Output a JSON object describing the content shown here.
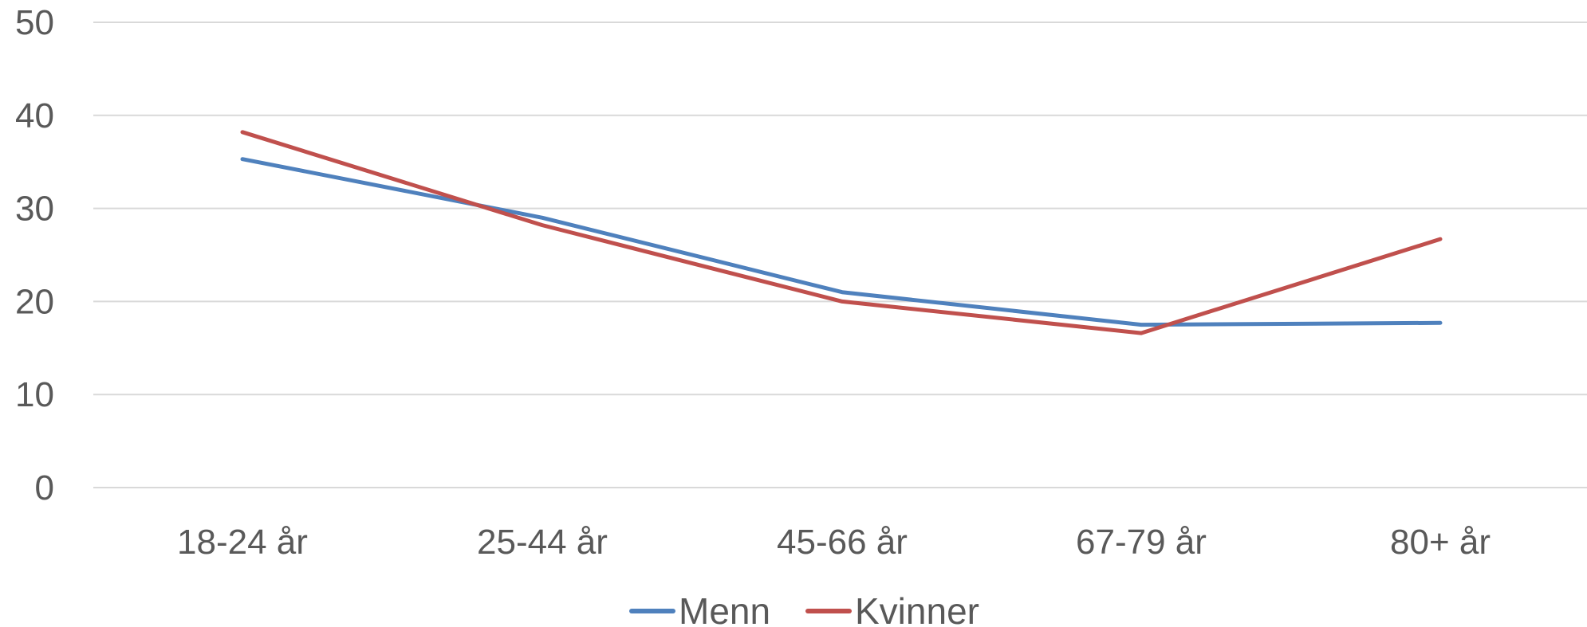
{
  "chart_data": {
    "type": "line",
    "categories": [
      "18-24 år",
      "25-44 år",
      "45-66 år",
      "67-79 år",
      "80+ år"
    ],
    "series": [
      {
        "name": "Menn",
        "color": "#4f81bd",
        "values": [
          35.3,
          29.0,
          21.0,
          17.5,
          17.7
        ]
      },
      {
        "name": "Kvinner",
        "color": "#c0504d",
        "values": [
          38.2,
          28.2,
          20.0,
          16.6,
          26.7
        ]
      }
    ],
    "ylim": [
      0,
      50
    ],
    "yticks": [
      0,
      10,
      20,
      30,
      40,
      50
    ],
    "grid": true,
    "legend_position": "bottom-center"
  }
}
